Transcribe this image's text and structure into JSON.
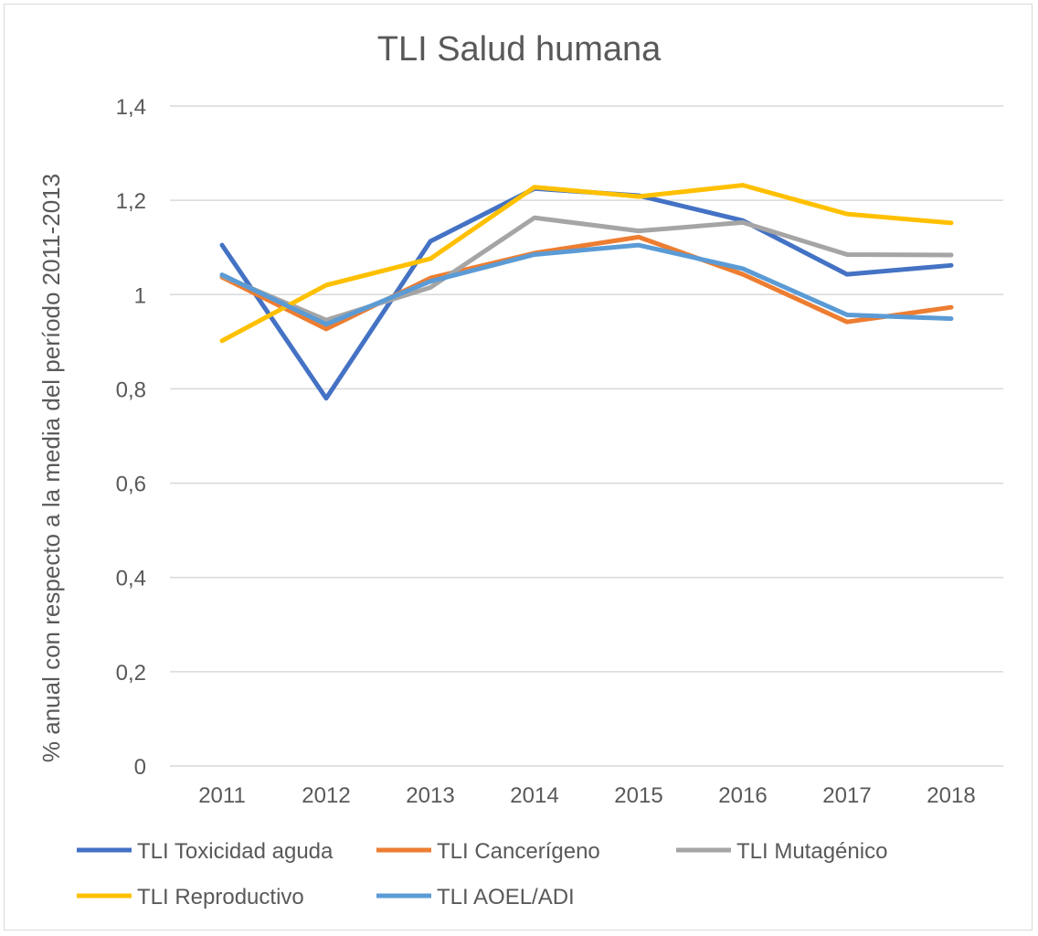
{
  "chart_data": {
    "type": "line",
    "title": "TLI Salud humana",
    "ylabel": "% anual con respecto a la media del período 2011-2013",
    "xlabel": "",
    "categories": [
      "2011",
      "2012",
      "2013",
      "2014",
      "2015",
      "2016",
      "2017",
      "2018"
    ],
    "ylim": [
      0,
      1.4
    ],
    "yticks": [
      0,
      0.2,
      0.4,
      0.6,
      0.8,
      1,
      1.2,
      1.4
    ],
    "ytick_labels": [
      "0",
      "0,2",
      "0,4",
      "0,6",
      "0,8",
      "1",
      "1,2",
      "1,4"
    ],
    "grid": true,
    "legend_position": "bottom",
    "series": [
      {
        "name": "TLI Toxicidad aguda",
        "color": "#4472c4",
        "values": [
          1.105,
          0.78,
          1.113,
          1.225,
          1.21,
          1.157,
          1.043,
          1.062
        ]
      },
      {
        "name": "TLI Cancerígeno",
        "color": "#ed7d31",
        "values": [
          1.037,
          0.927,
          1.035,
          1.088,
          1.122,
          1.043,
          0.942,
          0.973
        ]
      },
      {
        "name": "TLI Mutagénico",
        "color": "#a5a5a5",
        "values": [
          1.04,
          0.946,
          1.015,
          1.163,
          1.135,
          1.153,
          1.085,
          1.084
        ]
      },
      {
        "name": "TLI Reproductivo",
        "color": "#ffc000",
        "values": [
          0.902,
          1.02,
          1.076,
          1.228,
          1.208,
          1.232,
          1.171,
          1.152
        ]
      },
      {
        "name": "TLI AOEL/ADI",
        "color": "#5b9bd5",
        "values": [
          1.042,
          0.937,
          1.028,
          1.085,
          1.105,
          1.055,
          0.957,
          0.949
        ]
      }
    ]
  }
}
